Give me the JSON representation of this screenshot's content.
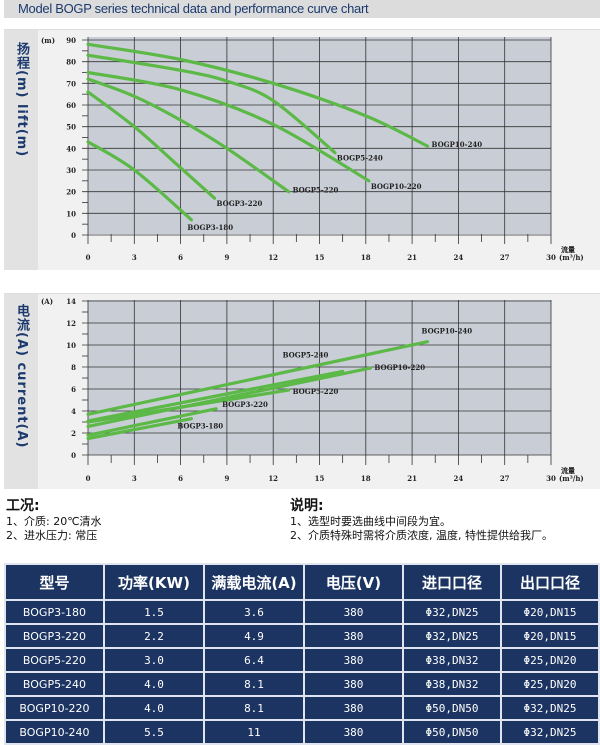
{
  "header": {
    "title": "Model BOGP series technical data and performance curve chart"
  },
  "chart_data": [
    {
      "type": "line",
      "ylabel": "扬程(m) lift(m)",
      "yunit": "(m)",
      "xlabel": "流量",
      "xunit": "(m³/h)",
      "xlim": [
        0,
        30
      ],
      "ylim": [
        0,
        90
      ],
      "xticks": [
        0,
        3,
        6,
        9,
        12,
        15,
        18,
        21,
        24,
        27,
        30
      ],
      "yticks": [
        0,
        10,
        20,
        30,
        40,
        50,
        60,
        70,
        80,
        90
      ],
      "grid": true,
      "line_color": "#5cb947",
      "background": "#c9ced6",
      "series": [
        {
          "name": "BOGP10-240",
          "x": [
            0,
            6,
            12,
            18,
            22
          ],
          "y": [
            88,
            81,
            70,
            55,
            41
          ]
        },
        {
          "name": "BOGP5-240",
          "x": [
            0,
            6,
            9,
            12,
            16
          ],
          "y": [
            83,
            76,
            71,
            62,
            38
          ]
        },
        {
          "name": "BOGP10-220",
          "x": [
            0,
            6,
            12,
            18.2
          ],
          "y": [
            75,
            67,
            51,
            25
          ]
        },
        {
          "name": "BOGP5-220",
          "x": [
            0,
            3,
            6,
            9,
            13
          ],
          "y": [
            72,
            64,
            53,
            40,
            20
          ]
        },
        {
          "name": "BOGP3-220",
          "x": [
            0,
            3,
            6,
            8.2
          ],
          "y": [
            66,
            50,
            31,
            17
          ]
        },
        {
          "name": "BOGP3-180",
          "x": [
            0,
            3,
            6.7
          ],
          "y": [
            43,
            30,
            7
          ]
        }
      ]
    },
    {
      "type": "line",
      "ylabel": "电流(A) current(A)",
      "yunit": "(A)",
      "xlabel": "流量",
      "xunit": "(m³/h)",
      "xlim": [
        0,
        30
      ],
      "ylim": [
        0,
        14
      ],
      "xticks": [
        0,
        3,
        6,
        9,
        12,
        15,
        18,
        21,
        24,
        27,
        30
      ],
      "yticks": [
        0,
        2,
        4,
        6,
        8,
        10,
        12,
        14
      ],
      "grid": true,
      "line_color": "#5cb947",
      "background": "#c9ced6",
      "series": [
        {
          "name": "BOGP10-240",
          "x": [
            0,
            22
          ],
          "y": [
            3.7,
            10.3
          ]
        },
        {
          "name": "BOGP5-240",
          "x": [
            0,
            16.5
          ],
          "y": [
            3.1,
            7.6
          ]
        },
        {
          "name": "BOGP10-220",
          "x": [
            0,
            18.3
          ],
          "y": [
            2.6,
            7.9
          ]
        },
        {
          "name": "BOGP5-220",
          "x": [
            0,
            13
          ],
          "y": [
            3.0,
            5.9
          ]
        },
        {
          "name": "BOGP3-220",
          "x": [
            0,
            8.3
          ],
          "y": [
            1.8,
            4.2
          ]
        },
        {
          "name": "BOGP3-180",
          "x": [
            0,
            6.7
          ],
          "y": [
            1.5,
            3.3
          ]
        }
      ]
    }
  ],
  "conditions": {
    "title": "工况:",
    "items": [
      "1、介质: 20℃清水",
      "2、进水压力: 常压"
    ]
  },
  "notes": {
    "title": "说明:",
    "items": [
      "1、选型时要选曲线中间段为宜。",
      "2、介质特殊时需将介质浓度, 温度, 特性提供给我厂。"
    ]
  },
  "table": {
    "headers": [
      "型号",
      "功率(KW)",
      "满载电流(A)",
      "电压(V)",
      "进口口径",
      "出口口径"
    ],
    "rows": [
      [
        "BOGP3-180",
        "1.5",
        "3.6",
        "380",
        "Φ32,DN25",
        "Φ20,DN15"
      ],
      [
        "BOGP3-220",
        "2.2",
        "4.9",
        "380",
        "Φ32,DN25",
        "Φ20,DN15"
      ],
      [
        "BOGP5-220",
        "3.0",
        "6.4",
        "380",
        "Φ38,DN32",
        "Φ25,DN20"
      ],
      [
        "BOGP5-240",
        "4.0",
        "8.1",
        "380",
        "Φ38,DN32",
        "Φ25,DN20"
      ],
      [
        "BOGP10-220",
        "4.0",
        "8.1",
        "380",
        "Φ50,DN50",
        "Φ32,DN25"
      ],
      [
        "BOGP10-240",
        "5.5",
        "11",
        "380",
        "Φ50,DN50",
        "Φ32,DN25"
      ]
    ]
  }
}
